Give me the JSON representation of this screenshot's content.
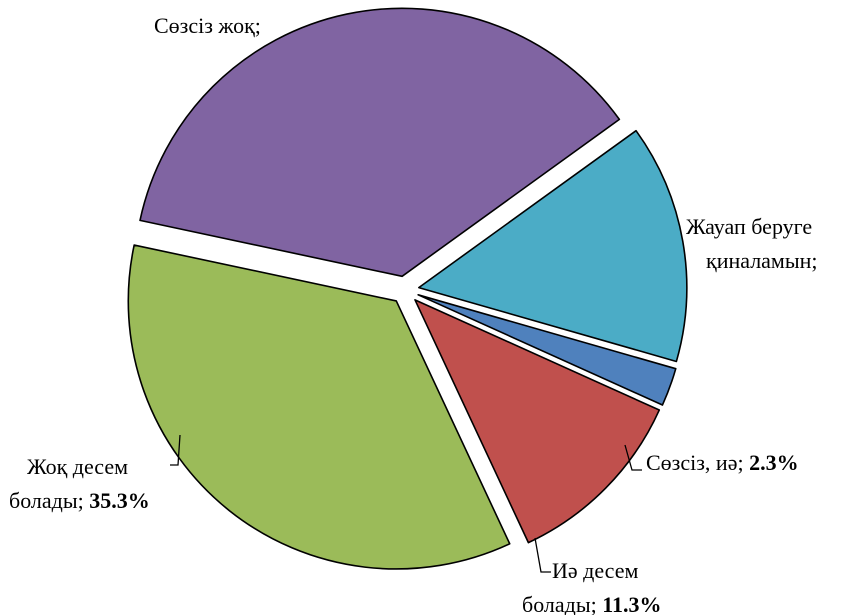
{
  "chart_data": {
    "type": "pie",
    "exploded": true,
    "slices": [
      {
        "label": "Сөзсіз, иә;",
        "value": 2.3,
        "value_text": "2.3%",
        "color": "#4f81bd"
      },
      {
        "label": "Иә десем болады;",
        "value": 11.3,
        "value_text": "11.3%",
        "color": "#c0504d"
      },
      {
        "label": "Жоқ десем болады;",
        "value": 35.3,
        "value_text": "35.3%",
        "color": "#9bbb59"
      },
      {
        "label": "Сөзсіз жоқ;",
        "value": 36.7,
        "value_text": "",
        "color": "#8064a2"
      },
      {
        "label": "Жауап беруге қиналамын;",
        "value": 14.4,
        "value_text": "",
        "color": "#4bacc6"
      }
    ]
  },
  "labels": {
    "s0": {
      "text": "Сөзсіз, иә;",
      "value": "2.3%"
    },
    "s1": {
      "line1": "Иә десем",
      "line2": "болады;",
      "value": "11.3%"
    },
    "s2": {
      "line1": "Жоқ десем",
      "line2": "болады;",
      "value": "35.3%"
    },
    "s3": {
      "text": "Сөзсіз жоқ;"
    },
    "s4": {
      "line1": "Жауап беруге",
      "line2": "қиналамын;"
    }
  }
}
